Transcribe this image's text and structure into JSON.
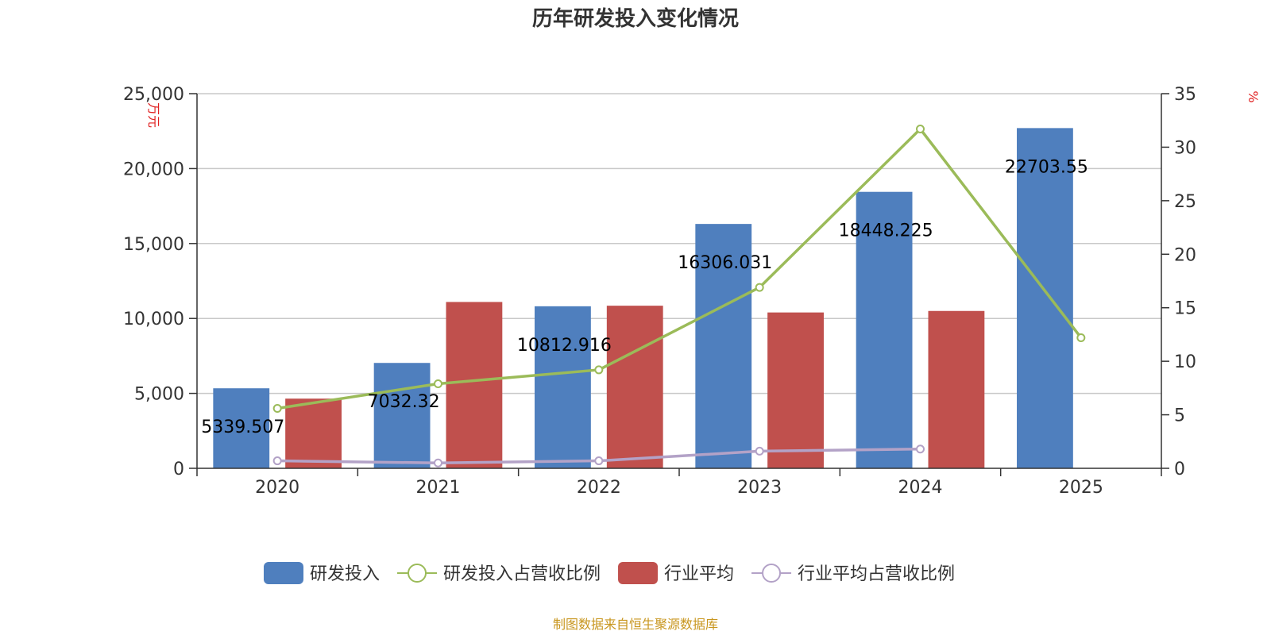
{
  "chart_data": {
    "type": "bar",
    "title": "历年研发投入变化情况",
    "categories": [
      "2020",
      "2021",
      "2022",
      "2023",
      "2024",
      "2025"
    ],
    "y_left": {
      "unit": "万元",
      "ylim": [
        0,
        25000
      ],
      "ticks": [
        0,
        5000,
        10000,
        15000,
        20000,
        25000
      ],
      "tick_labels": [
        "0",
        "5,000",
        "10,000",
        "15,000",
        "20,000",
        "25,000"
      ]
    },
    "y_right": {
      "unit": "%",
      "ylim": [
        0,
        35
      ],
      "ticks": [
        0,
        5,
        10,
        15,
        20,
        25,
        30,
        35
      ],
      "tick_labels": [
        "0",
        "5",
        "10",
        "15",
        "20",
        "25",
        "30",
        "35"
      ]
    },
    "grid": true,
    "legend_position": "bottom",
    "series": [
      {
        "name": "研发投入",
        "kind": "bar",
        "axis": "left",
        "color": "#4f7fbe",
        "values": [
          5339.507,
          7032.32,
          10812.916,
          16306.031,
          18448.225,
          22703.55
        ],
        "labels": [
          "5339.507",
          "7032.32",
          "10812.916",
          "16306.031",
          "18448.225",
          "22703.55"
        ]
      },
      {
        "name": "研发投入占营收比例",
        "kind": "line",
        "axis": "right",
        "color": "#9bbb59",
        "values": [
          5.6,
          7.9,
          9.2,
          16.9,
          31.7,
          12.2
        ]
      },
      {
        "name": "行业平均",
        "kind": "bar",
        "axis": "left",
        "color": "#c0504d",
        "values": [
          4650,
          11100,
          10850,
          10400,
          10500,
          null
        ]
      },
      {
        "name": "行业平均占营收比例",
        "kind": "line",
        "axis": "right",
        "color": "#b3a2c7",
        "values": [
          0.7,
          0.5,
          0.7,
          1.6,
          1.8,
          null
        ]
      }
    ],
    "source": "制图数据来自恒生聚源数据库"
  }
}
